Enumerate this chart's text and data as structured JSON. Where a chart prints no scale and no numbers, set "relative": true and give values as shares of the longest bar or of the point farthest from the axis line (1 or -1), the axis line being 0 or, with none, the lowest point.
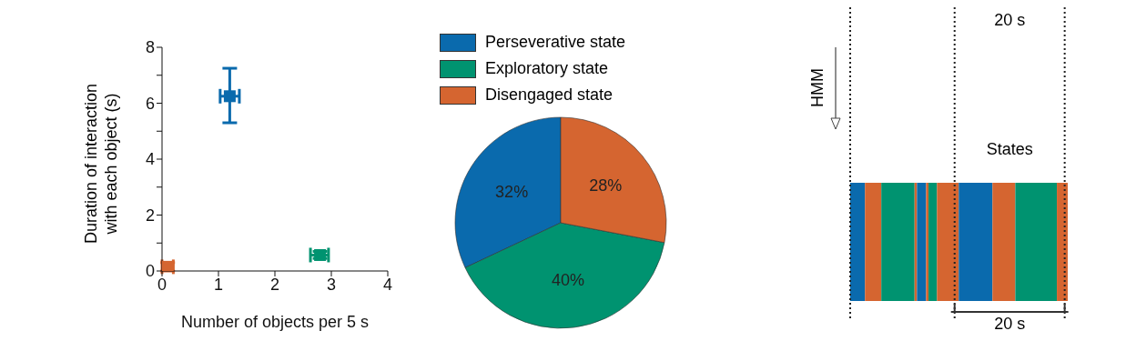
{
  "chart_data": [
    {
      "type": "scatter",
      "xlabel": "Number of objects per 5 s",
      "ylabel": "Duration of interaction with each object (s)",
      "xlim": [
        0,
        4
      ],
      "xticks": [
        0,
        1,
        2,
        3,
        4
      ],
      "ylim": [
        0,
        8
      ],
      "yticks": [
        0,
        {
          "value": 1,
          "label": null
        },
        2,
        {
          "value": 3,
          "label": null
        },
        4,
        {
          "value": 5,
          "label": null
        },
        6,
        {
          "value": 7,
          "label": null
        },
        8
      ],
      "grid": false,
      "legend": false,
      "marker": "square",
      "series": [
        {
          "color": "#0a6aad",
          "x": [
            1.2
          ],
          "values": [
            6.25
          ],
          "errors": [
            [
              5.3,
              7.25
            ]
          ],
          "xerrors": [
            [
              1.03,
              1.37
            ]
          ]
        },
        {
          "color": "#009370",
          "x": [
            2.8
          ],
          "values": [
            0.57
          ],
          "errors": [
            [
              0.45,
              0.7
            ]
          ],
          "xerrors": [
            [
              2.63,
              2.95
            ]
          ]
        },
        {
          "color": "#d56530",
          "x": [
            0.1
          ],
          "values": [
            0.15
          ],
          "errors": [
            [
              0,
              0.3
            ]
          ],
          "xerrors": [
            [
              0,
              0.2
            ]
          ]
        }
      ]
    },
    {
      "type": "pie",
      "categories": [
        "Perseverative state",
        "Exploratory state",
        "Disengaged state"
      ],
      "values": [
        32,
        40,
        28
      ],
      "colors": [
        "#0a6aad",
        "#009370",
        "#d56530"
      ],
      "value_labels": [
        "32%",
        "40%",
        "28%"
      ],
      "legend": "top"
    },
    {
      "type": "bar",
      "orientation": "horizontal",
      "stacked": true,
      "relative": true,
      "categories": [
        null
      ],
      "series": [
        {
          "color": "#0a6aad",
          "values": [
            0.068
          ]
        },
        {
          "color": "#d56530",
          "values": [
            0.075
          ]
        },
        {
          "color": "#009370",
          "values": [
            0.153
          ]
        },
        {
          "color": "#d56530",
          "values": [
            0.011
          ]
        },
        {
          "color": "#0a6aad",
          "values": [
            0.042
          ]
        },
        {
          "color": "#d56530",
          "values": [
            0.011
          ]
        },
        {
          "color": "#009370",
          "values": [
            0.039
          ]
        },
        {
          "color": "#d56530",
          "values": [
            0.1
          ]
        },
        {
          "color": "#0a6aad",
          "values": [
            0.155
          ]
        },
        {
          "color": "#d56530",
          "values": [
            0.105
          ]
        },
        {
          "color": "#009370",
          "values": [
            0.191
          ]
        },
        {
          "color": "#d56530",
          "values": [
            0.05
          ]
        }
      ],
      "ref_lines": [
        {
          "axis": "x",
          "value": 0,
          "line_style": "dotted",
          "color": "#222222"
        },
        {
          "axis": "x",
          "value": 0.48,
          "line_style": "dotted",
          "color": "#222222"
        },
        {
          "axis": "x",
          "value": 0.986,
          "line_style": "dotted",
          "color": "#222222"
        }
      ],
      "annotations": [
        "HMM",
        "States",
        "20 s",
        "20 s"
      ]
    }
  ]
}
